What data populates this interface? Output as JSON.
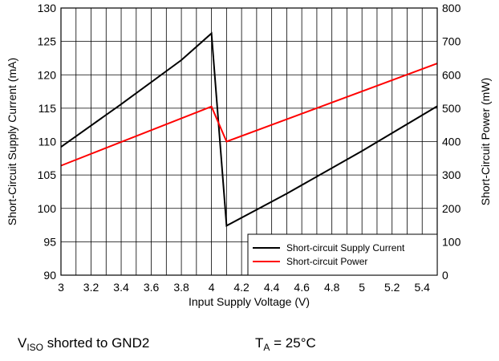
{
  "chart_data": {
    "type": "line",
    "xlabel": "Input Supply Voltage (V)",
    "ylabel_left": "Short-Circuit Supply Current (mA)",
    "ylabel_right": "Short-Circuit Power (mW)",
    "xlim": [
      3,
      5.5
    ],
    "ylim_left": [
      90,
      130
    ],
    "ylim_right": [
      0,
      800
    ],
    "x_ticks": [
      3,
      3.2,
      3.4,
      3.6,
      3.8,
      4,
      4.2,
      4.4,
      4.6,
      4.8,
      5,
      5.2,
      5.4
    ],
    "x_tick_labels": [
      "3",
      "3.2",
      "3.4",
      "3.6",
      "3.8",
      "4",
      "4.2",
      "4.4",
      "4.6",
      "4.8",
      "5",
      "5.2",
      "5.4"
    ],
    "y_left_ticks": [
      90,
      95,
      100,
      105,
      110,
      115,
      120,
      125,
      130
    ],
    "y_right_ticks": [
      0,
      100,
      200,
      300,
      400,
      500,
      600,
      700,
      800
    ],
    "grid": true,
    "legend_position": "bottom-right",
    "series": [
      {
        "name": "Short-circuit Supply Current",
        "axis": "left",
        "color": "#000000",
        "x": [
          3.0,
          3.4,
          3.8,
          4.0,
          4.1,
          4.5,
          5.0,
          5.5
        ],
        "y": [
          109.2,
          115.6,
          122.2,
          126.2,
          97.4,
          102.2,
          108.6,
          115.3
        ]
      },
      {
        "name": "Short-circuit Power",
        "axis": "right",
        "color": "#ff0000",
        "x": [
          3.0,
          4.0,
          4.1,
          5.5
        ],
        "y": [
          328,
          505,
          400,
          634
        ]
      }
    ]
  },
  "caption": {
    "left_main": "V",
    "left_sub": "ISO",
    "left_rest": " shorted to GND2",
    "right_main": "T",
    "right_sub": "A",
    "right_rest": " = 25°C"
  }
}
